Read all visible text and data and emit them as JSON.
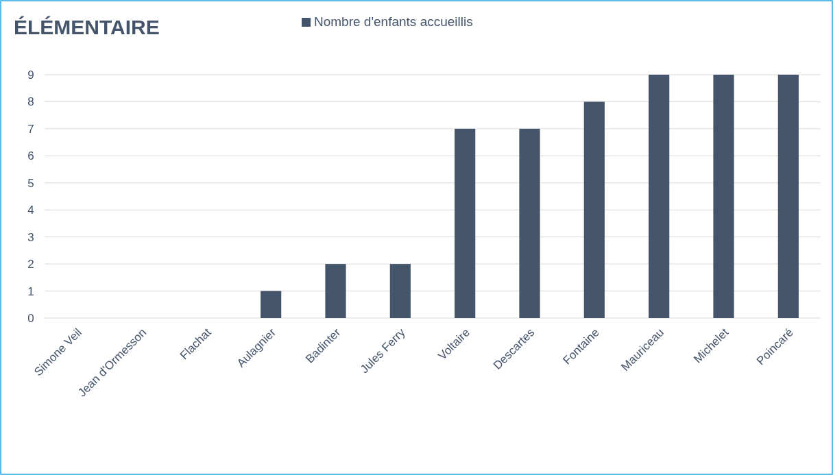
{
  "chart_data": {
    "type": "bar",
    "title": "ÉLÉMENTAIRE",
    "categories": [
      "Simone Veil",
      "Jean d'Ormesson",
      "Flachat",
      "Aulagnier",
      "Badinter",
      "Jules Ferry",
      "Voltaire",
      "Descartes",
      "Fontaine",
      "Mauriceau",
      "Michelet",
      "Poincaré"
    ],
    "series": [
      {
        "name": "Nombre d'enfants accueillis",
        "color": "#44546a",
        "values": [
          0,
          0,
          0,
          1,
          2,
          2,
          7,
          7,
          8,
          9,
          9,
          9
        ]
      }
    ],
    "ylim": [
      0,
      9
    ],
    "yticks": [
      0,
      1,
      2,
      3,
      4,
      5,
      6,
      7,
      8,
      9
    ],
    "grid": "y",
    "legend": "top"
  }
}
